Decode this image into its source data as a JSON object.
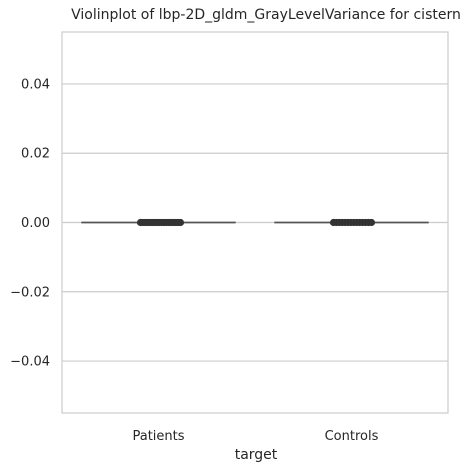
{
  "chart_data": {
    "type": "violin",
    "title": "Violinplot of lbp-2D_gldm_GrayLevelVariance for cistern",
    "xlabel": "target",
    "ylabel": "",
    "categories": [
      "Patients",
      "Controls"
    ],
    "ylim": [
      -0.055,
      0.055
    ],
    "yticks": [
      0.04,
      0.02,
      0.0,
      -0.02,
      -0.04
    ],
    "ytick_labels": [
      "0.04",
      "0.02",
      "0.00",
      "−0.02",
      "−0.04"
    ],
    "grid": "horizontal",
    "series": [
      {
        "category": "Patients",
        "center": 0.0,
        "points": [
          0,
          0,
          0,
          0,
          0,
          0,
          0,
          0,
          0,
          0,
          0,
          0,
          0,
          0,
          0,
          0,
          0,
          0
        ]
      },
      {
        "category": "Controls",
        "center": 0.0,
        "points": [
          0,
          0,
          0,
          0,
          0,
          0,
          0,
          0,
          0,
          0,
          0,
          0,
          0,
          0
        ]
      }
    ],
    "colors": {
      "grid": "#cccccc",
      "frame": "#cccccc",
      "line": "#555555",
      "point": "#333333"
    }
  }
}
